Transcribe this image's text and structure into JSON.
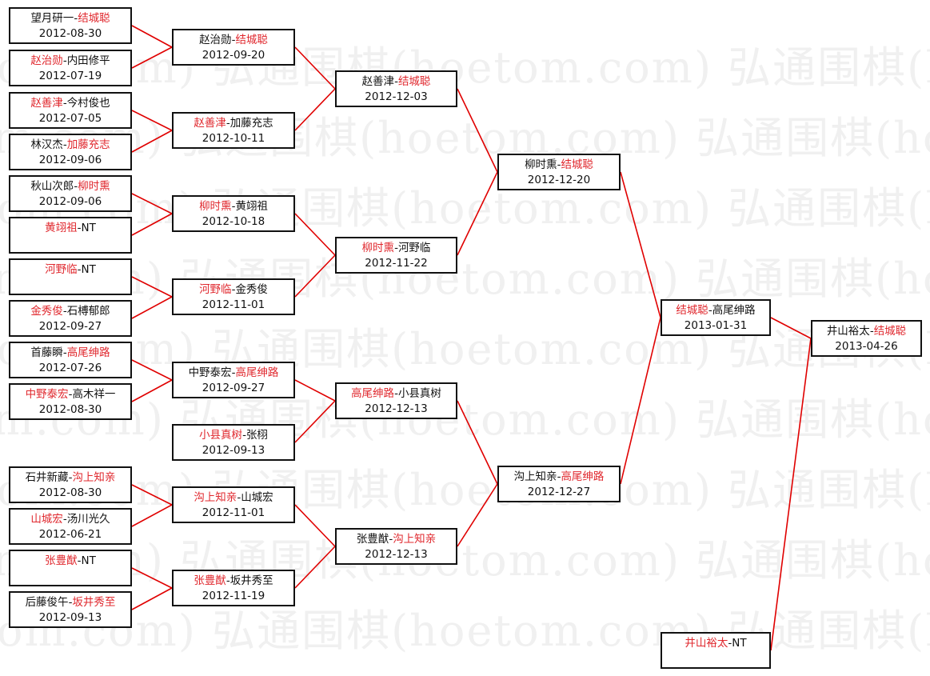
{
  "watermark": "弘通围棋(hoetom.com)",
  "colors": {
    "winner": "#e0282e",
    "line": "#e00000",
    "border": "#111111",
    "watermark": "#f0f0f0"
  },
  "rounds": [
    {
      "matches": [
        {
          "p1": "望月研一",
          "p2": "结城聪",
          "winner": 2,
          "date": "2012-08-30"
        },
        {
          "p1": "赵治勋",
          "p2": "内田修平",
          "winner": 1,
          "date": "2012-07-19"
        },
        {
          "p1": "赵善津",
          "p2": "今村俊也",
          "winner": 1,
          "date": "2012-07-05"
        },
        {
          "p1": "林汉杰",
          "p2": "加藤充志",
          "winner": 2,
          "date": "2012-09-06"
        },
        {
          "p1": "秋山次郎",
          "p2": "柳时熏",
          "winner": 2,
          "date": "2012-09-06"
        },
        {
          "p1": "黄翊祖",
          "p2": "NT",
          "winner": 1,
          "date": ""
        },
        {
          "p1": "河野临",
          "p2": "NT",
          "winner": 1,
          "date": ""
        },
        {
          "p1": "金秀俊",
          "p2": "石榑郁郎",
          "winner": 1,
          "date": "2012-09-27"
        },
        {
          "p1": "首藤瞬",
          "p2": "高尾绅路",
          "winner": 2,
          "date": "2012-07-26"
        },
        {
          "p1": "中野泰宏",
          "p2": "高木祥一",
          "winner": 1,
          "date": "2012-08-30"
        },
        {
          "p1": "石井新藏",
          "p2": "沟上知亲",
          "winner": 2,
          "date": "2012-08-30"
        },
        {
          "p1": "山城宏",
          "p2": "汤川光久",
          "winner": 1,
          "date": "2012-06-21"
        },
        {
          "p1": "张豊猷",
          "p2": "NT",
          "winner": 1,
          "date": ""
        },
        {
          "p1": "后藤俊午",
          "p2": "坂井秀至",
          "winner": 2,
          "date": "2012-09-13"
        }
      ]
    },
    {
      "matches": [
        {
          "p1": "赵治勋",
          "p2": "结城聪",
          "winner": 2,
          "date": "2012-09-20"
        },
        {
          "p1": "赵善津",
          "p2": "加藤充志",
          "winner": 1,
          "date": "2012-10-11"
        },
        {
          "p1": "柳时熏",
          "p2": "黄翊祖",
          "winner": 1,
          "date": "2012-10-18"
        },
        {
          "p1": "河野临",
          "p2": "金秀俊",
          "winner": 1,
          "date": "2012-11-01"
        },
        {
          "p1": "中野泰宏",
          "p2": "高尾绅路",
          "winner": 2,
          "date": "2012-09-27"
        },
        {
          "p1": "小县真树",
          "p2": "张栩",
          "winner": 1,
          "date": "2012-09-13"
        },
        {
          "p1": "沟上知亲",
          "p2": "山城宏",
          "winner": 1,
          "date": "2012-11-01"
        },
        {
          "p1": "张豊猷",
          "p2": "坂井秀至",
          "winner": 1,
          "date": "2012-11-19"
        }
      ]
    },
    {
      "matches": [
        {
          "p1": "赵善津",
          "p2": "结城聪",
          "winner": 2,
          "date": "2012-12-03"
        },
        {
          "p1": "柳时熏",
          "p2": "河野临",
          "winner": 1,
          "date": "2012-11-22"
        },
        {
          "p1": "高尾绅路",
          "p2": "小县真树",
          "winner": 1,
          "date": "2012-12-13"
        },
        {
          "p1": "张豊猷",
          "p2": "沟上知亲",
          "winner": 2,
          "date": "2012-12-13"
        }
      ]
    },
    {
      "matches": [
        {
          "p1": "柳时熏",
          "p2": "结城聪",
          "winner": 2,
          "date": "2012-12-20"
        },
        {
          "p1": "沟上知亲",
          "p2": "高尾绅路",
          "winner": 2,
          "date": "2012-12-27"
        }
      ]
    },
    {
      "matches": [
        {
          "p1": "结城聪",
          "p2": "高尾绅路",
          "winner": 1,
          "date": "2013-01-31"
        },
        {
          "p1": "井山裕太",
          "p2": "NT",
          "winner": 1,
          "date": ""
        }
      ]
    },
    {
      "matches": [
        {
          "p1": "井山裕太",
          "p2": "结城聪",
          "winner": 2,
          "date": "2013-04-26"
        }
      ]
    }
  ]
}
